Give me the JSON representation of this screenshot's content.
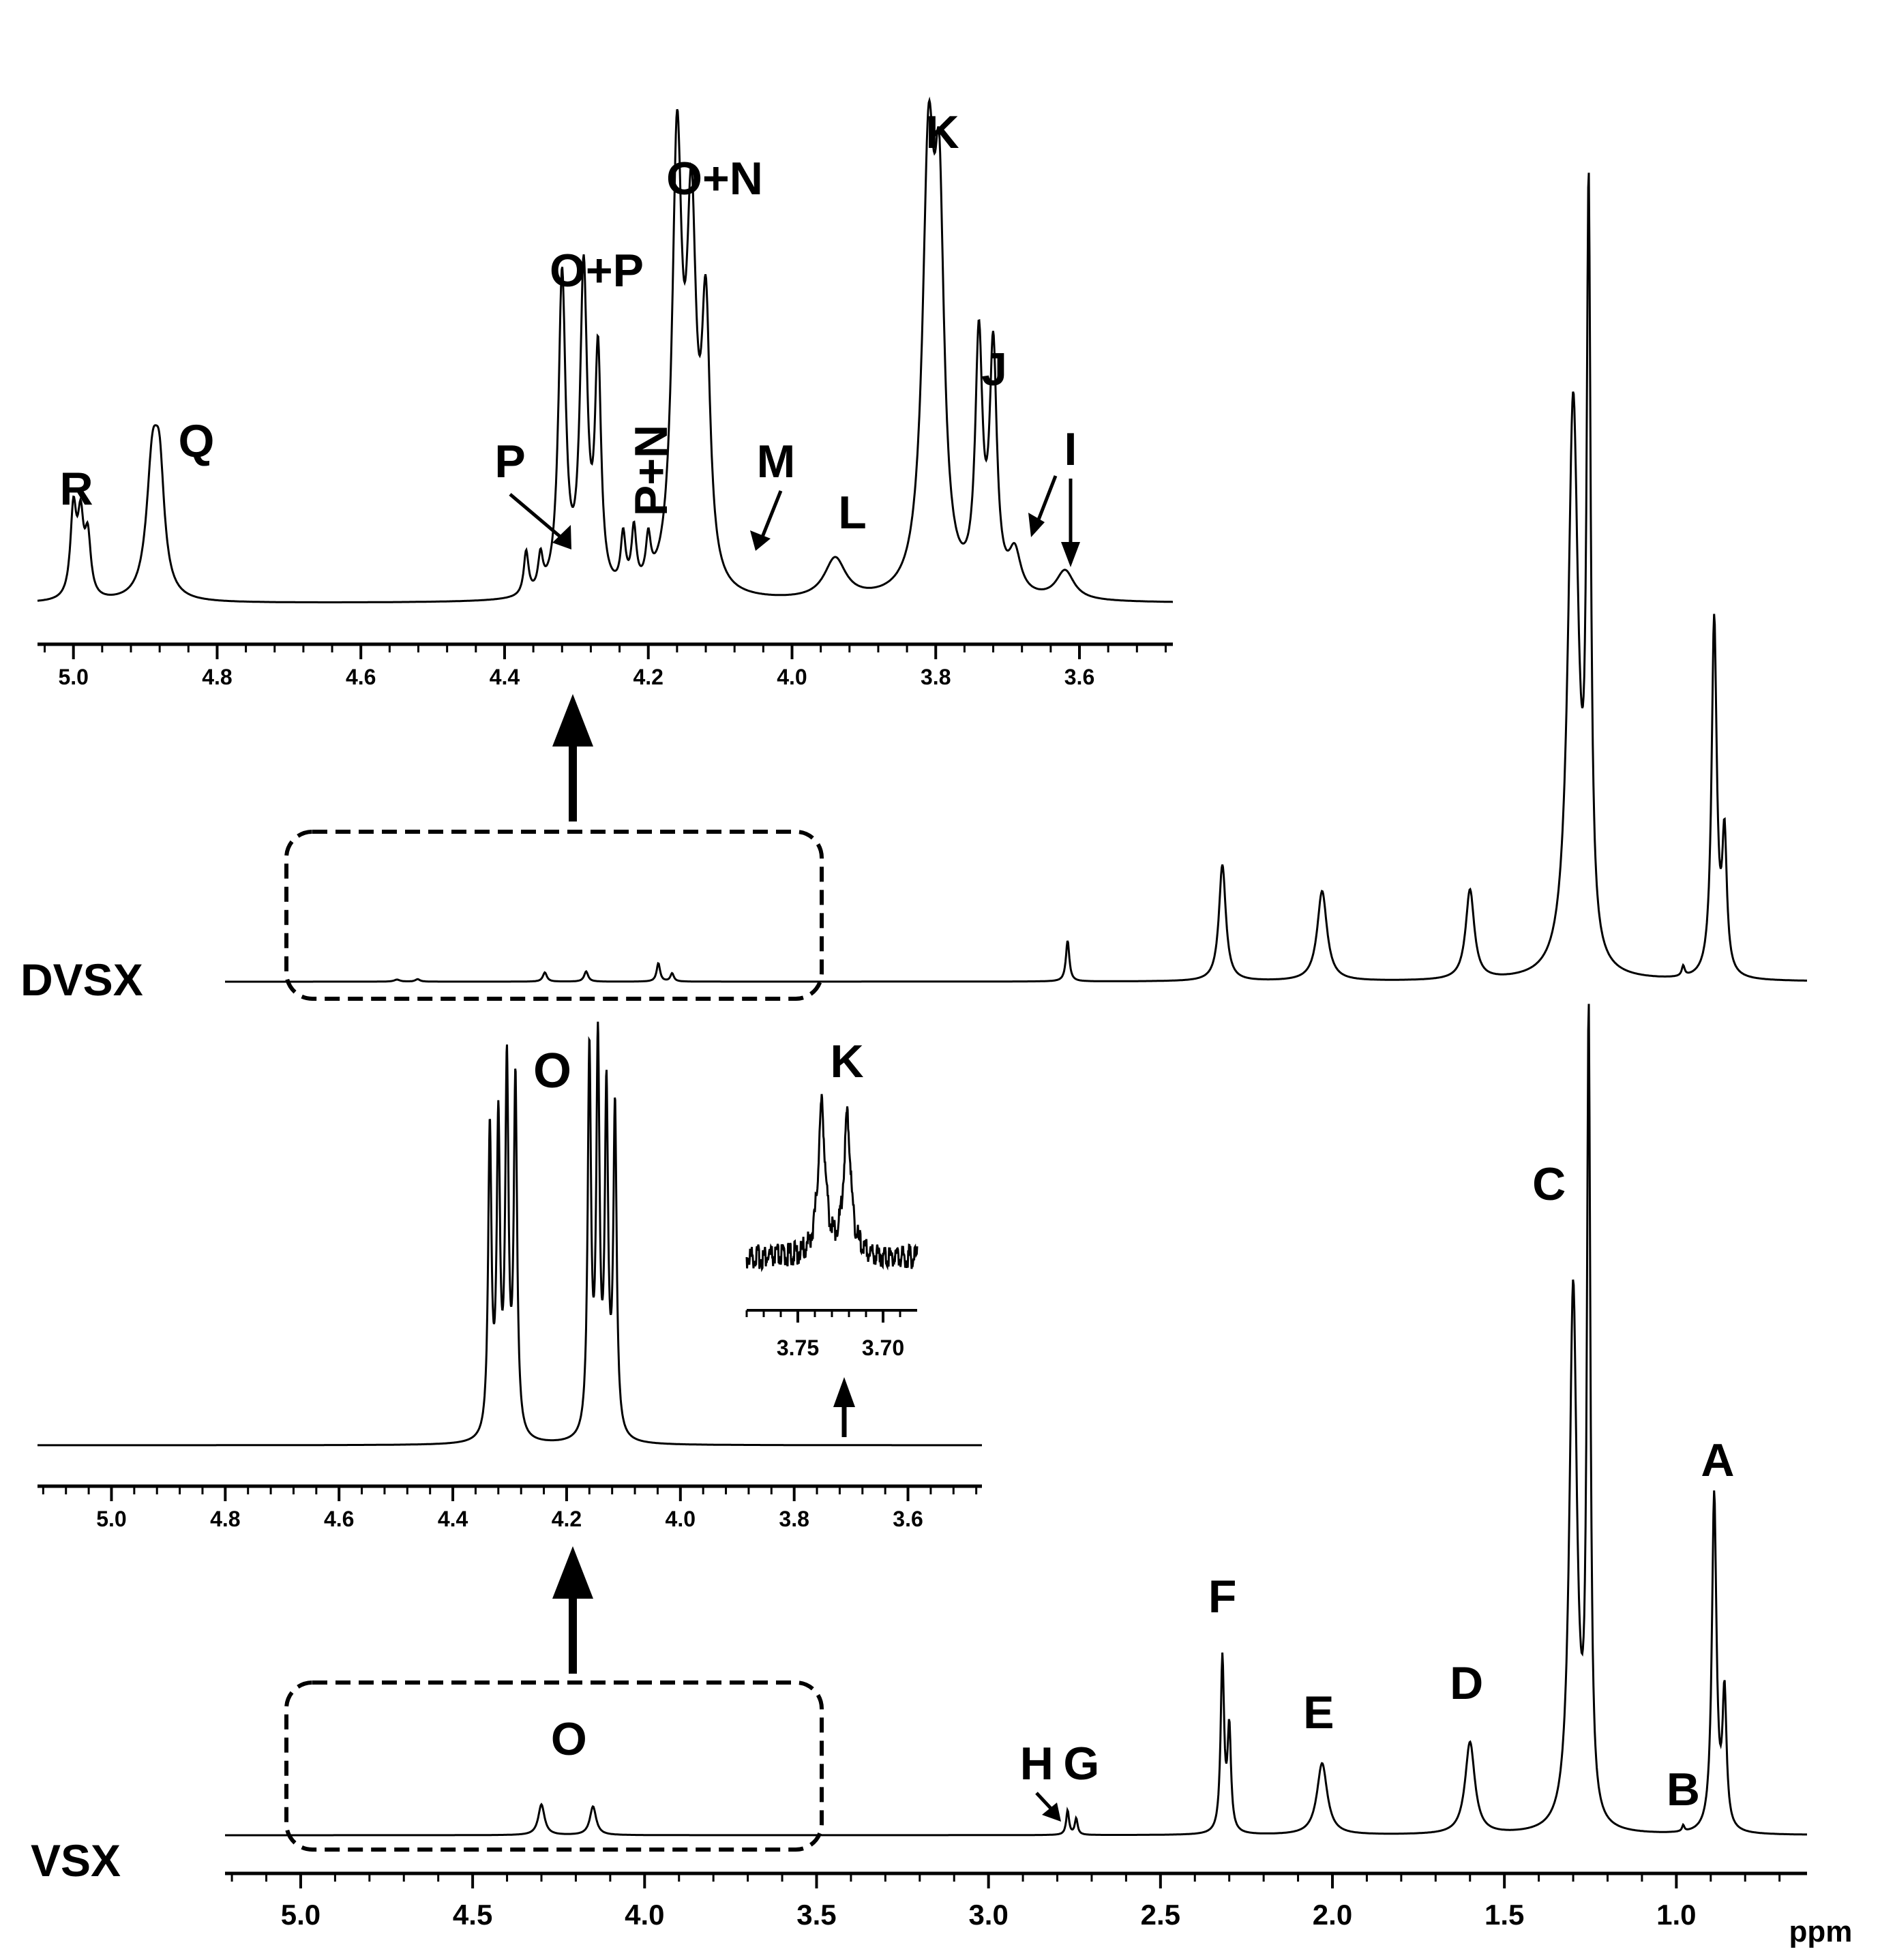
{
  "chart_data": [
    {
      "type": "line",
      "title": "",
      "xlabel": "ppm",
      "ylabel": "",
      "x_reversed": true,
      "xlim": [
        5.22,
        0.62
      ],
      "xticks": [
        "5.0",
        "4.5",
        "4.0",
        "3.5",
        "3.0",
        "2.5",
        "2.0",
        "1.5",
        "1.0"
      ],
      "grid": false,
      "series": [
        {
          "name": "DVSX",
          "peaks": [
            [
              4.72,
              0.01,
              0.01
            ],
            [
              4.66,
              0.012,
              0.008
            ],
            [
              4.29,
              0.045,
              0.007
            ],
            [
              4.17,
              0.05,
              0.007
            ],
            [
              3.96,
              0.09,
              0.006
            ],
            [
              3.92,
              0.04,
              0.006
            ],
            [
              2.77,
              0.2,
              0.006
            ],
            [
              2.32,
              0.57,
              0.012
            ],
            [
              2.03,
              0.44,
              0.017
            ],
            [
              1.6,
              0.44,
              0.015
            ],
            [
              1.3,
              2.8,
              0.018
            ],
            [
              1.255,
              3.6,
              0.007
            ],
            [
              0.98,
              0.05,
              0.005
            ],
            [
              0.89,
              1.75,
              0.009
            ],
            [
              0.86,
              0.65,
              0.008
            ]
          ]
        },
        {
          "name": "VSX",
          "peaks": [
            [
              4.3,
              0.15,
              0.011
            ],
            [
              4.15,
              0.14,
              0.011
            ],
            [
              2.77,
              0.12,
              0.005
            ],
            [
              2.745,
              0.08,
              0.005
            ],
            [
              2.32,
              0.85,
              0.006
            ],
            [
              2.3,
              0.5,
              0.006
            ],
            [
              2.03,
              0.35,
              0.018
            ],
            [
              1.6,
              0.45,
              0.017
            ],
            [
              1.3,
              2.65,
              0.013
            ],
            [
              1.255,
              3.9,
              0.006
            ],
            [
              0.98,
              0.03,
              0.004
            ],
            [
              0.89,
              1.65,
              0.008
            ],
            [
              0.86,
              0.65,
              0.007
            ]
          ]
        }
      ],
      "labels": [
        {
          "text": "A",
          "x": 0.88
        },
        {
          "text": "B",
          "x": 0.98
        },
        {
          "text": "C",
          "x": 1.37
        },
        {
          "text": "D",
          "x": 1.61
        },
        {
          "text": "E",
          "x": 2.04
        },
        {
          "text": "F",
          "x": 2.32
        },
        {
          "text": "G",
          "x": 2.73
        },
        {
          "text": "H",
          "x": 2.86
        },
        {
          "text": "O",
          "x": 4.22
        }
      ],
      "row_labels": [
        "DVSX",
        "VSX"
      ]
    },
    {
      "type": "line",
      "title": "",
      "xlim": [
        5.05,
        3.47
      ],
      "xticks": [
        "5.0",
        "4.8",
        "4.6",
        "4.4",
        "4.2",
        "4.0",
        "3.8",
        "3.6"
      ],
      "series": [
        {
          "name": "",
          "peaks": [
            [
              5.0,
              0.3,
              0.005
            ],
            [
              4.99,
              0.25,
              0.005
            ],
            [
              4.98,
              0.2,
              0.005
            ],
            [
              4.89,
              0.45,
              0.01
            ],
            [
              4.88,
              0.35,
              0.008
            ],
            [
              4.37,
              0.15,
              0.004
            ],
            [
              4.35,
              0.12,
              0.004
            ],
            [
              4.32,
              1.1,
              0.006
            ],
            [
              4.29,
              1.1,
              0.006
            ],
            [
              4.27,
              0.8,
              0.005
            ],
            [
              4.235,
              0.18,
              0.004
            ],
            [
              4.22,
              0.2,
              0.004
            ],
            [
              4.2,
              0.15,
              0.004
            ],
            [
              4.16,
              1.5,
              0.008
            ],
            [
              4.14,
              1.2,
              0.008
            ],
            [
              4.12,
              0.9,
              0.007
            ],
            [
              3.94,
              0.14,
              0.018
            ],
            [
              3.81,
              1.45,
              0.01
            ],
            [
              3.795,
              1.15,
              0.008
            ],
            [
              3.74,
              0.85,
              0.006
            ],
            [
              3.72,
              0.82,
              0.006
            ],
            [
              3.69,
              0.14,
              0.01
            ],
            [
              3.62,
              0.1,
              0.015
            ]
          ]
        }
      ],
      "labels": [
        {
          "text": "R",
          "x": 5.0
        },
        {
          "text": "Q",
          "x": 4.89
        },
        {
          "text": "P",
          "x": 4.4
        },
        {
          "text": "O+P",
          "x": 4.3
        },
        {
          "text": "P+N",
          "x": 4.21
        },
        {
          "text": "O+N",
          "x": 4.15
        },
        {
          "text": "M",
          "x": 4.05
        },
        {
          "text": "L",
          "x": 3.94
        },
        {
          "text": "K",
          "x": 3.81
        },
        {
          "text": "J",
          "x": 3.73
        },
        {
          "text": "I",
          "x": 3.63
        }
      ]
    },
    {
      "type": "line",
      "title": "",
      "xlim": [
        5.13,
        3.47
      ],
      "xticks": [
        "5.0",
        "4.8",
        "4.6",
        "4.4",
        "4.2",
        "4.0",
        "3.8",
        "3.6"
      ],
      "series": [
        {
          "name": "",
          "peaks": [
            [
              4.335,
              1.6,
              0.0035
            ],
            [
              4.32,
              1.6,
              0.0035
            ],
            [
              4.305,
              1.9,
              0.0035
            ],
            [
              4.29,
              1.85,
              0.0035
            ],
            [
              4.16,
              2.0,
              0.0035
            ],
            [
              4.145,
              2.0,
              0.0035
            ],
            [
              4.13,
              1.75,
              0.0035
            ],
            [
              4.115,
              1.7,
              0.0035
            ]
          ]
        }
      ],
      "labels": [
        {
          "text": "O",
          "x": 4.24
        }
      ]
    },
    {
      "type": "line",
      "title": "",
      "xlim": [
        3.78,
        3.68
      ],
      "xticks": [
        "3.75",
        "3.70"
      ],
      "series": [
        {
          "name": "",
          "peaks": [
            [
              3.736,
              1.0,
              0.0025
            ],
            [
              3.721,
              0.92,
              0.0025
            ]
          ]
        }
      ],
      "labels": [
        {
          "text": "K",
          "x": 3.73
        }
      ]
    }
  ]
}
